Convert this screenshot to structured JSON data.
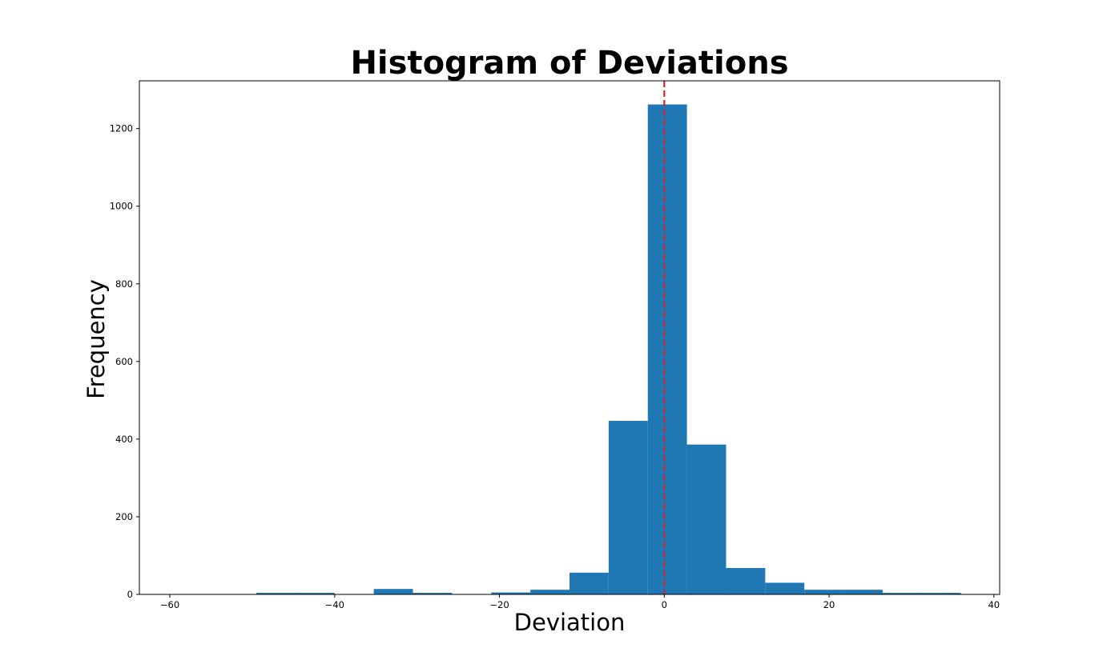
{
  "chart_data": {
    "type": "bar",
    "title": "Histogram of Deviations",
    "xlabel": "Deviation",
    "ylabel": "Frequency",
    "xlim": [
      -63.7,
      40.7
    ],
    "ylim": [
      0,
      1323
    ],
    "xticks": [
      -60,
      -40,
      -20,
      0,
      20,
      40
    ],
    "xtick_labels": [
      "−60",
      "−40",
      "−20",
      "0",
      "20",
      "40"
    ],
    "yticks": [
      0,
      200,
      400,
      600,
      800,
      1000,
      1200
    ],
    "ytick_labels": [
      "0",
      "200",
      "400",
      "600",
      "800",
      "1000",
      "1200"
    ],
    "bin_edges": [
      -59.0,
      -54.25,
      -49.5,
      -44.75,
      -40.0,
      -35.25,
      -30.5,
      -25.75,
      -21.0,
      -16.25,
      -11.5,
      -6.75,
      -2.0,
      2.75,
      7.5,
      12.25,
      17.0,
      21.75,
      26.5,
      31.25,
      36.0
    ],
    "values": [
      1,
      0,
      4,
      4,
      1,
      14,
      4,
      0,
      5,
      12,
      56,
      447,
      1262,
      386,
      68,
      30,
      12,
      12,
      4,
      4
    ],
    "reference_line": {
      "x": 0,
      "color": "#d62728",
      "style": "dashed"
    },
    "bar_color": "#1f77b4",
    "grid": false
  }
}
